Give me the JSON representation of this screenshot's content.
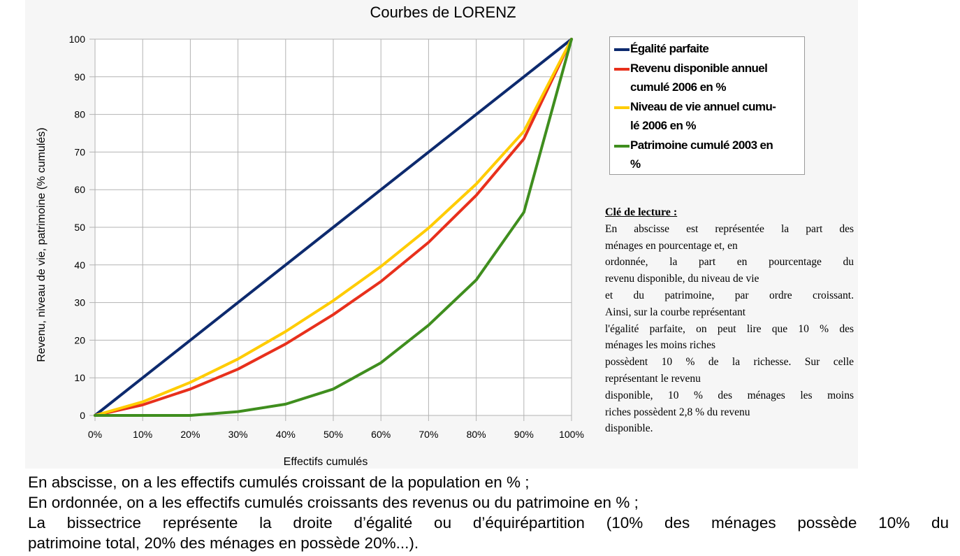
{
  "chart_data": {
    "type": "line",
    "title": "Courbes de LORENZ",
    "xlabel": "Effectifs cumulés",
    "ylabel": "Revenu, niveau de vie, patrimoine (% cumulés)",
    "x": [
      0,
      10,
      20,
      30,
      40,
      50,
      60,
      70,
      80,
      90,
      100
    ],
    "x_tick_labels": [
      "0%",
      "10%",
      "20%",
      "30%",
      "40%",
      "50%",
      "60%",
      "70%",
      "80%",
      "90%",
      "100%"
    ],
    "y_ticks": [
      0,
      10,
      20,
      30,
      40,
      50,
      60,
      70,
      80,
      90,
      100
    ],
    "xlim": [
      0,
      100
    ],
    "ylim": [
      0,
      100
    ],
    "grid": true,
    "legend_position": "right",
    "series": [
      {
        "name": "Égalité parfaite",
        "color": "#0d2a6e",
        "values": [
          0,
          10,
          20,
          30,
          40,
          50,
          60,
          70,
          80,
          90,
          100
        ]
      },
      {
        "name": "Revenu disponible annuel cumulé 2006 en %",
        "color": "#e8301c",
        "values": [
          0,
          2.8,
          7,
          12.3,
          19,
          26.8,
          35.6,
          46,
          58.5,
          73.5,
          100
        ]
      },
      {
        "name": "Niveau de vie annuel cumulé 2006 en %",
        "color": "#ffcc00",
        "values": [
          0,
          3.6,
          8.8,
          15,
          22.3,
          30.5,
          39.6,
          49.8,
          61.5,
          75.5,
          100
        ]
      },
      {
        "name": "Patrimoine cumulé 2003 en %",
        "color": "#3f8e1e",
        "values": [
          0,
          0,
          0,
          1,
          3,
          7,
          14,
          24,
          36,
          54,
          100
        ]
      }
    ]
  },
  "legend": {
    "items": [
      {
        "label_lines": [
          "Égalité parfaite"
        ],
        "color": "#0d2a6e"
      },
      {
        "label_lines": [
          "Revenu disponible annuel",
          "cumulé 2006 en %"
        ],
        "color": "#e8301c"
      },
      {
        "label_lines": [
          "Niveau de vie annuel cumu-",
          "lé 2006 en %"
        ],
        "color": "#ffcc00"
      },
      {
        "label_lines": [
          "Patrimoine cumulé 2003 en",
          "%"
        ],
        "color": "#3f8e1e"
      }
    ]
  },
  "reading_key": {
    "title": "Clé de lecture :",
    "lines": [
      "En abscisse est représentée la part des",
      "ménages en pourcentage et, en",
      "ordonnée, la part en pourcentage du",
      "revenu disponible, du niveau de vie",
      "et du patrimoine, par ordre croissant.",
      "Ainsi, sur la courbe représentant",
      "l'égalité parfaite, on peut lire que 10 % des",
      "ménages les moins riches",
      "possèdent 10 % de la richesse. Sur celle",
      "représentant le revenu",
      "disponible, 10 % des ménages les moins",
      "riches possèdent 2,8 % du revenu",
      "disponible."
    ]
  },
  "footnotes": {
    "lines": [
      "En abscisse, on a les effectifs cumulés croissant de la population en % ;",
      "En ordonnée, on a les effectifs cumulés croissants des revenus ou du patrimoine en % ;",
      "La bissectrice représente la droite d’égalité ou d’équirépartition (10% des ménages possède 10% du",
      "patrimoine total, 20% des ménages en possède 20%...)."
    ]
  }
}
